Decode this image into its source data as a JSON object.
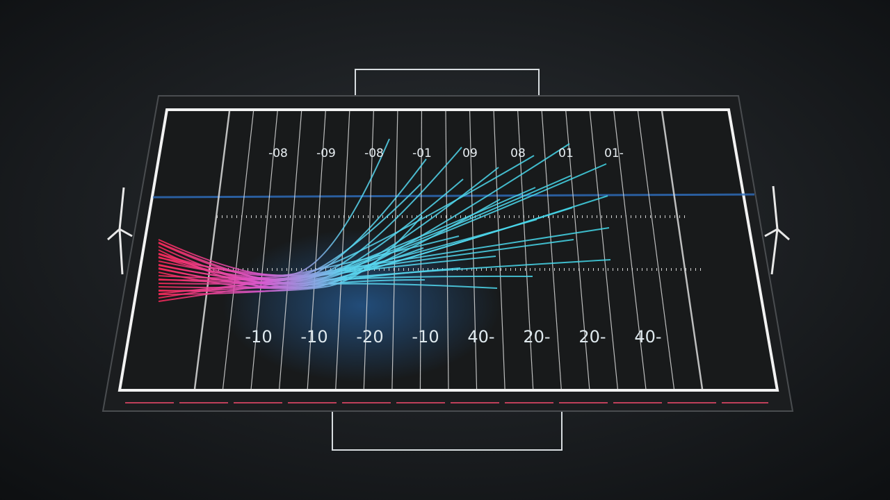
{
  "field": {
    "top_numbers": [
      "-08",
      "-09",
      "-08",
      "-01",
      "09",
      "08",
      "01",
      "01-"
    ],
    "bottom_numbers": [
      "-10",
      "-10",
      "-20",
      "-10",
      "40-",
      "20-",
      "20-",
      "40-"
    ]
  }
}
